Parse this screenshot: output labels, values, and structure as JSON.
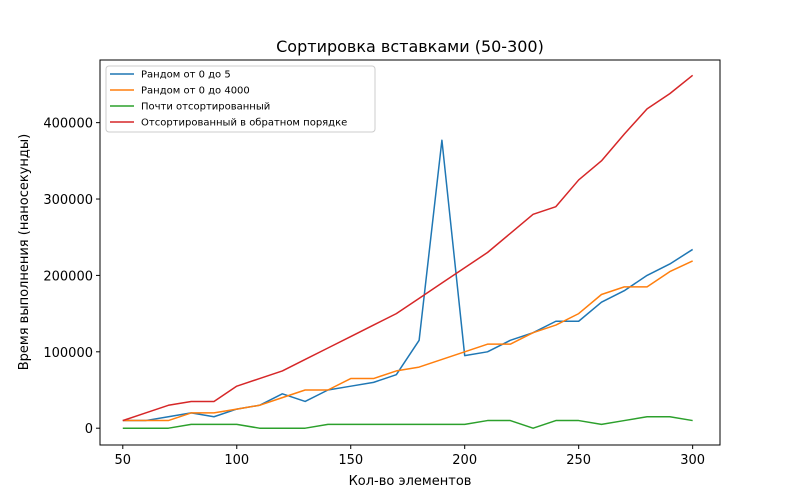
{
  "chart_data": {
    "type": "line",
    "title": "Сортировка вставками (50-300)",
    "xlabel": "Кол-во элементов",
    "ylabel": "Время выполнения (наносекунды)",
    "xlim": [
      40,
      312
    ],
    "ylim": [
      -22000,
      482000
    ],
    "xticks": [
      50,
      100,
      150,
      200,
      250,
      300
    ],
    "yticks": [
      0,
      100000,
      200000,
      300000,
      400000
    ],
    "grid": false,
    "legend_position": "top-left",
    "x": [
      50,
      60,
      70,
      80,
      90,
      100,
      110,
      120,
      130,
      140,
      150,
      160,
      170,
      180,
      190,
      200,
      210,
      220,
      230,
      240,
      250,
      260,
      270,
      280,
      290,
      300
    ],
    "series": [
      {
        "name": "Рандом от 0 до 5",
        "color": "#1f77b4",
        "values": [
          10000,
          10000,
          15000,
          20000,
          15000,
          25000,
          30000,
          45000,
          35000,
          50000,
          55000,
          60000,
          70000,
          115000,
          377000,
          95000,
          100000,
          115000,
          125000,
          140000,
          140000,
          165000,
          180000,
          200000,
          215000,
          234000
        ]
      },
      {
        "name": "Рандом от 0 до 4000",
        "color": "#ff7f0e",
        "values": [
          10000,
          10000,
          10000,
          20000,
          20000,
          25000,
          30000,
          40000,
          50000,
          50000,
          65000,
          65000,
          75000,
          80000,
          90000,
          100000,
          110000,
          110000,
          125000,
          135000,
          150000,
          175000,
          185000,
          185000,
          205000,
          219000
        ]
      },
      {
        "name": "Почти отсортированный",
        "color": "#2ca02c",
        "values": [
          0,
          0,
          0,
          5000,
          5000,
          5000,
          0,
          0,
          0,
          5000,
          5000,
          5000,
          5000,
          5000,
          5000,
          5000,
          10000,
          10000,
          0,
          10000,
          10000,
          5000,
          10000,
          15000,
          15000,
          10000
        ]
      },
      {
        "name": "Отсортированный в обратном порядке",
        "color": "#d62728",
        "values": [
          10000,
          20000,
          30000,
          35000,
          35000,
          55000,
          65000,
          75000,
          90000,
          105000,
          120000,
          135000,
          150000,
          170000,
          190000,
          210000,
          230000,
          255000,
          280000,
          290000,
          325000,
          350000,
          385000,
          418000,
          438000,
          462000
        ]
      }
    ]
  }
}
